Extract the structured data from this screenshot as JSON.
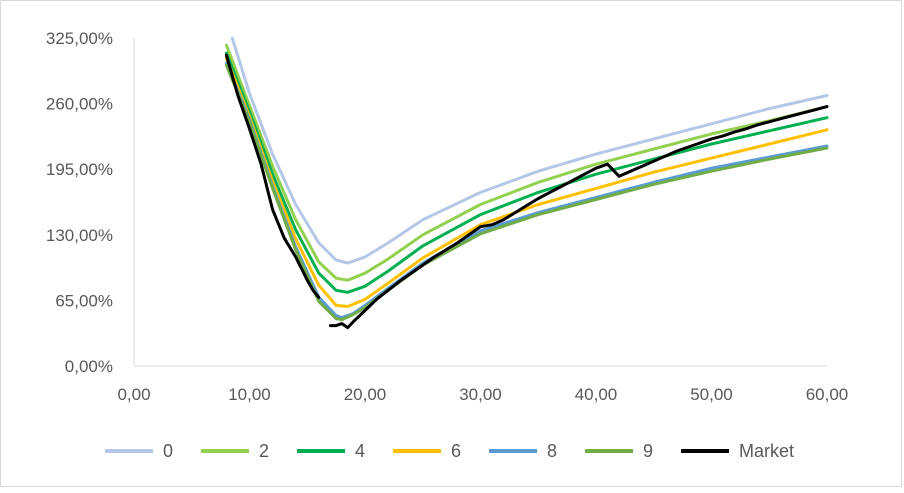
{
  "chart_data": {
    "type": "line",
    "title": "",
    "xlabel": "",
    "ylabel": "",
    "xlim": [
      0,
      60
    ],
    "ylim": [
      0,
      325
    ],
    "x_ticks": [
      "0,00",
      "10,00",
      "20,00",
      "30,00",
      "40,00",
      "50,00",
      "60,00"
    ],
    "x_tick_values": [
      0,
      10,
      20,
      30,
      40,
      50,
      60
    ],
    "y_ticks": [
      "0,00%",
      "65,00%",
      "130,00%",
      "195,00%",
      "260,00%",
      "325,00%"
    ],
    "y_tick_values": [
      0,
      65,
      130,
      195,
      260,
      325
    ],
    "grid": false,
    "legend_position": "bottom",
    "series": [
      {
        "name": "0",
        "color": "#b4c7e7",
        "x": [
          8.5,
          10,
          12,
          14,
          16,
          17.5,
          18.5,
          20,
          22,
          25,
          30,
          35,
          40,
          45,
          50,
          55,
          60
        ],
        "y": [
          325,
          270,
          210,
          160,
          122,
          105,
          102,
          108,
          122,
          145,
          172,
          193,
          210,
          225,
          240,
          255,
          268
        ]
      },
      {
        "name": "2",
        "color": "#92d050",
        "x": [
          8,
          10,
          12,
          14,
          16,
          17.5,
          18.5,
          20,
          22,
          25,
          30,
          35,
          40,
          45,
          50,
          55,
          60
        ],
        "y": [
          318,
          258,
          198,
          145,
          103,
          87,
          85,
          92,
          106,
          130,
          160,
          182,
          200,
          215,
          230,
          243,
          257
        ]
      },
      {
        "name": "4",
        "color": "#00b050",
        "x": [
          8,
          10,
          12,
          14,
          16,
          17.5,
          18.5,
          20,
          22,
          25,
          30,
          35,
          40,
          45,
          50,
          55,
          60
        ],
        "y": [
          310,
          252,
          190,
          135,
          92,
          75,
          73,
          79,
          94,
          119,
          150,
          172,
          190,
          205,
          220,
          233,
          246
        ]
      },
      {
        "name": "6",
        "color": "#ffc000",
        "x": [
          8,
          10,
          12,
          14,
          16,
          17.5,
          18.5,
          20,
          22,
          25,
          30,
          35,
          40,
          45,
          50,
          55,
          60
        ],
        "y": [
          305,
          247,
          183,
          126,
          80,
          60,
          59,
          66,
          82,
          107,
          140,
          160,
          176,
          192,
          206,
          220,
          234
        ]
      },
      {
        "name": "8",
        "color": "#5b9bd5",
        "x": [
          8,
          10,
          12,
          14,
          16,
          17.5,
          18,
          19,
          20,
          22,
          25,
          30,
          35,
          40,
          45,
          50,
          55,
          60
        ],
        "y": [
          300,
          244,
          178,
          118,
          68,
          50,
          48,
          52,
          60,
          77,
          102,
          134,
          152,
          167,
          182,
          196,
          207,
          218
        ]
      },
      {
        "name": "9",
        "color": "#70ad47",
        "x": [
          8,
          10,
          12,
          14,
          16,
          17.5,
          18,
          19,
          20,
          22,
          25,
          30,
          35,
          40,
          45,
          50,
          55,
          60
        ],
        "y": [
          298,
          242,
          176,
          115,
          64,
          47,
          46,
          51,
          58,
          75,
          100,
          131,
          150,
          165,
          180,
          193,
          205,
          216
        ]
      },
      {
        "name": "Market",
        "color": "#000000",
        "x": [
          8,
          9,
          10,
          11,
          12,
          13,
          14,
          15,
          15.5,
          16
        ],
        "y": [
          308,
          268,
          235,
          200,
          155,
          127,
          108,
          85,
          75,
          68
        ]
      },
      {
        "name": "",
        "color": "#000000",
        "legend": false,
        "x": [
          17,
          17.5,
          18,
          18.5,
          19,
          20,
          21,
          22,
          23,
          24,
          25,
          26,
          27,
          28,
          29,
          30,
          31,
          32,
          33,
          34,
          35,
          36,
          37,
          38,
          39,
          40,
          41,
          42,
          43,
          44,
          45,
          46,
          47,
          48,
          49,
          50,
          51,
          52,
          53,
          54,
          55,
          56,
          57,
          58,
          59,
          60
        ],
        "y": [
          40,
          40,
          42,
          38,
          44,
          55,
          66,
          75,
          84,
          92,
          100,
          108,
          115,
          122,
          130,
          138,
          140,
          145,
          152,
          159,
          166,
          172,
          178,
          184,
          190,
          196,
          200,
          188,
          193,
          198,
          203,
          208,
          213,
          217,
          221,
          225,
          228,
          232,
          235,
          239,
          242,
          245,
          248,
          251,
          254,
          257
        ]
      }
    ]
  }
}
